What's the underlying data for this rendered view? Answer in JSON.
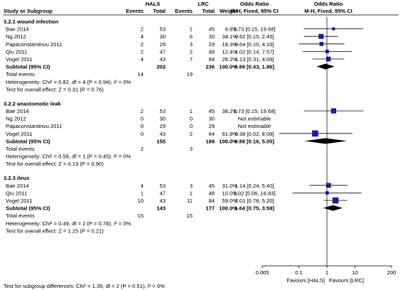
{
  "header": {
    "study_col": "Study or Subgroup",
    "group1": "HALS",
    "group2": "LRC",
    "events": "Events",
    "total": "Total",
    "weight": "Weight",
    "or_title": "Odds Ratio",
    "or_method": "M-H, Fixed, 95% CI",
    "plot_title": "Odds Ratio",
    "plot_method": "M-H, Fixed, 95% CI"
  },
  "axis": {
    "ticks": [
      "0.005",
      "0.1",
      "1",
      "10",
      "200"
    ],
    "tick_values": [
      0.005,
      0.1,
      1,
      10,
      200
    ],
    "scale": "log",
    "favours_left": "Favours [HALS]",
    "favours_right": "Favours [LRC]"
  },
  "footer": "Test for subgroup differences: Chi² = 1.35, df = 2 (P = 0.51), I² = 0%",
  "colors": {
    "study_marker": "#1a1aa8",
    "summary_diamond": "#000000",
    "ci_line": "#000000"
  },
  "chart_data": {
    "type": "forest",
    "xlim": [
      0.005,
      200
    ],
    "null_value": 1,
    "subgroups": [
      {
        "title": "3.2.1 wound infection",
        "studies": [
          {
            "name": "Bae 2014",
            "e1": "2",
            "n1": "53",
            "e2": "1",
            "n2": "45",
            "weight": "6.8%",
            "ci_text": "1.73 [0.15, 19.68]",
            "or": 1.73,
            "lo": 0.15,
            "hi": 19.68,
            "w": 6.8
          },
          {
            "name": "Ng 2012",
            "e1": "4",
            "n1": "30",
            "e2": "6",
            "n2": "30",
            "weight": "34.1%",
            "ci_text": "0.62 [0.15, 2.45]",
            "or": 0.62,
            "lo": 0.15,
            "hi": 2.45,
            "w": 34.1
          },
          {
            "name": "Papaconstantinou 2011",
            "e1": "2",
            "n1": "29",
            "e2": "3",
            "n2": "29",
            "weight": "18.3%",
            "ci_text": "0.64 [0.10, 4.16]",
            "or": 0.64,
            "lo": 0.1,
            "hi": 4.16,
            "w": 18.3
          },
          {
            "name": "Qiu 2011",
            "e1": "2",
            "n1": "47",
            "e2": "2",
            "n2": "48",
            "weight": "12.4%",
            "ci_text": "1.02 [0.14, 7.57]",
            "or": 1.02,
            "lo": 0.14,
            "hi": 7.57,
            "w": 12.4
          },
          {
            "name": "Vogel 2011",
            "e1": "4",
            "n1": "43",
            "e2": "7",
            "n2": "84",
            "weight": "28.2%",
            "ci_text": "1.13 [0.31, 4.09]",
            "or": 1.13,
            "lo": 0.31,
            "hi": 4.09,
            "w": 28.2
          }
        ],
        "subtotal": {
          "label": "Subtotal (95% CI)",
          "n1": "202",
          "n2": "236",
          "weight": "100.0%",
          "ci_text": "0.89 [0.43, 1.86]",
          "or": 0.89,
          "lo": 0.43,
          "hi": 1.86
        },
        "total_events": {
          "label": "Total events",
          "e1": "14",
          "e2": "19"
        },
        "heterogeneity": "Heterogeneity: Chi² = 0.82, df = 4 (P = 0.94); I² = 0%",
        "overall": "Test for overall effect: Z = 0.31 (P = 0.76)"
      },
      {
        "title": "3.2.2 anastomotic leak",
        "studies": [
          {
            "name": "Bae 2014",
            "e1": "2",
            "n1": "53",
            "e2": "1",
            "n2": "45",
            "weight": "38.2%",
            "ci_text": "1.73 [0.15, 19.68]",
            "or": 1.73,
            "lo": 0.15,
            "hi": 19.68,
            "w": 38.2
          },
          {
            "name": "Ng 2012",
            "e1": "0",
            "n1": "30",
            "e2": "0",
            "n2": "30",
            "weight": "",
            "ci_text": "Not estimable",
            "or": null,
            "lo": null,
            "hi": null,
            "w": 0
          },
          {
            "name": "Papaconstantinou 2011",
            "e1": "0",
            "n1": "29",
            "e2": "0",
            "n2": "29",
            "weight": "",
            "ci_text": "Not estimable",
            "or": null,
            "lo": null,
            "hi": null,
            "w": 0
          },
          {
            "name": "Vogel 2011",
            "e1": "0",
            "n1": "43",
            "e2": "2",
            "n2": "84",
            "weight": "61.8%",
            "ci_text": "0.38 [0.02, 8.08]",
            "or": 0.38,
            "lo": 0.02,
            "hi": 8.08,
            "w": 61.8
          }
        ],
        "subtotal": {
          "label": "Subtotal (95% CI)",
          "n1": "155",
          "n2": "188",
          "weight": "100.0%",
          "ci_text": "0.89 [0.16, 5.05]",
          "or": 0.89,
          "lo": 0.16,
          "hi": 5.05
        },
        "total_events": {
          "label": "Total events",
          "e1": "2",
          "e2": "3"
        },
        "heterogeneity": "Heterogeneity: Chi² = 0.58, df = 1 (P = 0.45); I² = 0%",
        "overall": "Test for overall effect: Z = 0.13 (P = 0.90)"
      },
      {
        "title": "3.2.3 ileus",
        "studies": [
          {
            "name": "Bae 2014",
            "e1": "4",
            "n1": "53",
            "e2": "3",
            "n2": "45",
            "weight": "31.0%",
            "ci_text": "1.14 [0.24, 5.40]",
            "or": 1.14,
            "lo": 0.24,
            "hi": 5.4,
            "w": 31.0
          },
          {
            "name": "Qiu 2011",
            "e1": "1",
            "n1": "47",
            "e2": "1",
            "n2": "48",
            "weight": "10.0%",
            "ci_text": "1.02 [0.06, 16.83]",
            "or": 1.02,
            "lo": 0.06,
            "hi": 16.83,
            "w": 10.0
          },
          {
            "name": "Vogel 2011",
            "e1": "10",
            "n1": "43",
            "e2": "11",
            "n2": "84",
            "weight": "59.0%",
            "ci_text": "2.01 [0.78, 5.20]",
            "or": 2.01,
            "lo": 0.78,
            "hi": 5.2,
            "w": 59.0
          }
        ],
        "subtotal": {
          "label": "Subtotal (95% CI)",
          "n1": "143",
          "n2": "177",
          "weight": "100.0%",
          "ci_text": "1.64 [0.75, 3.59]",
          "or": 1.64,
          "lo": 0.75,
          "hi": 3.59
        },
        "total_events": {
          "label": "Total events",
          "e1": "15",
          "e2": "15"
        },
        "heterogeneity": "Heterogeneity: Chi² = 0.49, df = 2 (P = 0.78); I² = 0%",
        "overall": "Test for overall effect: Z = 1.25 (P = 0.21)"
      }
    ]
  }
}
